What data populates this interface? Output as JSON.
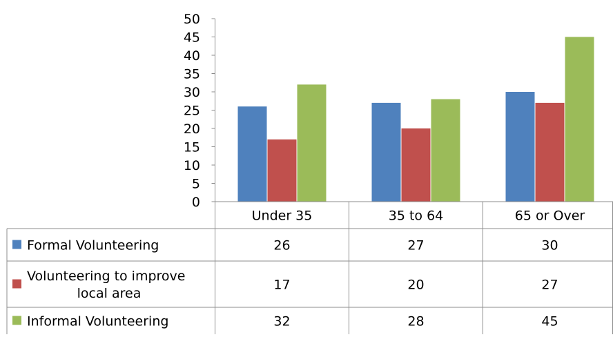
{
  "chart_data": {
    "type": "bar",
    "categories": [
      "Under 35",
      "35 to 64",
      "65 or Over"
    ],
    "series": [
      {
        "name": "Formal Volunteering",
        "legend_lines": [
          "Formal Volunteering"
        ],
        "color": "#4f81bd",
        "values": [
          26,
          27,
          30
        ]
      },
      {
        "name": "Volunteering to improve local area",
        "legend_lines": [
          "Volunteering to improve",
          "local area"
        ],
        "color": "#c0504d",
        "values": [
          17,
          20,
          27
        ]
      },
      {
        "name": "Informal Volunteering",
        "legend_lines": [
          "Informal Volunteering"
        ],
        "color": "#9bbb59",
        "values": [
          32,
          28,
          45
        ]
      }
    ],
    "yticks": [
      "0",
      "5",
      "10",
      "15",
      "20",
      "25",
      "30",
      "35",
      "40",
      "45",
      "50"
    ],
    "ylim": [
      0,
      50
    ],
    "grid": false,
    "legend": "data-table",
    "title": "",
    "xlabel": "",
    "ylabel": ""
  }
}
